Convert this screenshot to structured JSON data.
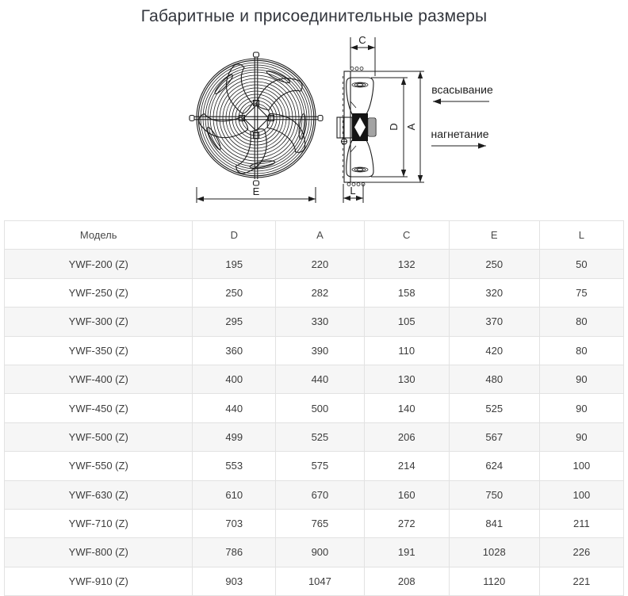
{
  "page": {
    "title": "Габаритные и присоединительные размеры"
  },
  "diagram": {
    "front_view": {
      "width_label": "E"
    },
    "side_view": {
      "depth_label": "C",
      "impeller_label": "D",
      "overall_label": "A",
      "mount_label": "L"
    },
    "airflow": {
      "suction_label": "всасывание",
      "discharge_label": "нагнетание"
    }
  },
  "table": {
    "columns": [
      "Модель",
      "D",
      "A",
      "C",
      "E",
      "L"
    ],
    "rows": [
      {
        "model": "YWF-200 (Z)",
        "d": "195",
        "a": "220",
        "c": "132",
        "e": "250",
        "l": "50"
      },
      {
        "model": "YWF-250 (Z)",
        "d": "250",
        "a": "282",
        "c": "158",
        "e": "320",
        "l": "75"
      },
      {
        "model": "YWF-300 (Z)",
        "d": "295",
        "a": "330",
        "c": "105",
        "e": "370",
        "l": "80"
      },
      {
        "model": "YWF-350 (Z)",
        "d": "360",
        "a": "390",
        "c": "110",
        "e": "420",
        "l": "80"
      },
      {
        "model": "YWF-400 (Z)",
        "d": "400",
        "a": "440",
        "c": "130",
        "e": "480",
        "l": "90"
      },
      {
        "model": "YWF-450 (Z)",
        "d": "440",
        "a": "500",
        "c": "140",
        "e": "525",
        "l": "90"
      },
      {
        "model": "YWF-500 (Z)",
        "d": "499",
        "a": "525",
        "c": "206",
        "e": "567",
        "l": "90"
      },
      {
        "model": "YWF-550 (Z)",
        "d": "553",
        "a": "575",
        "c": "214",
        "e": "624",
        "l": "100"
      },
      {
        "model": "YWF-630 (Z)",
        "d": "610",
        "a": "670",
        "c": "160",
        "e": "750",
        "l": "100"
      },
      {
        "model": "YWF-710 (Z)",
        "d": "703",
        "a": "765",
        "c": "272",
        "e": "841",
        "l": "211"
      },
      {
        "model": "YWF-800 (Z)",
        "d": "786",
        "a": "900",
        "c": "191",
        "e": "1028",
        "l": "226"
      },
      {
        "model": "YWF-910 (Z)",
        "d": "903",
        "a": "1047",
        "c": "208",
        "e": "1120",
        "l": "221"
      }
    ]
  }
}
